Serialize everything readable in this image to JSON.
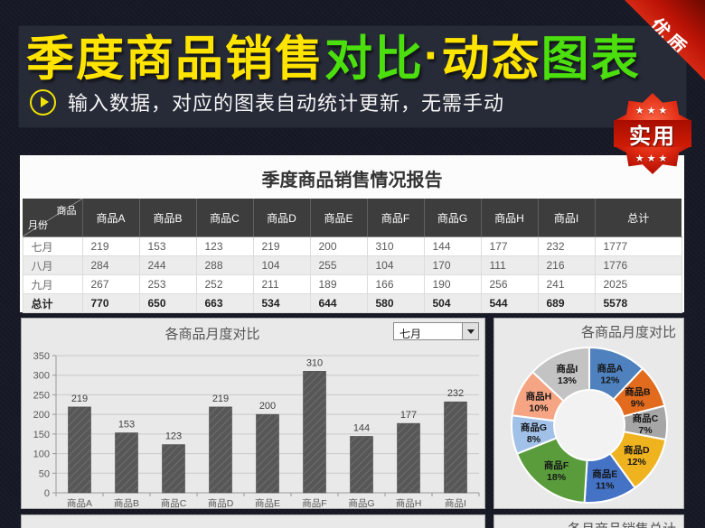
{
  "ribbon": {
    "label": "优质"
  },
  "badge": {
    "label": "实用",
    "stars_top": "★★★",
    "stars_bottom": "★★★"
  },
  "banner": {
    "title_segments": [
      {
        "text": "季度商品销售",
        "color": "#ffe400"
      },
      {
        "text": "对比",
        "color": "#4cdf0e"
      },
      {
        "text": "·",
        "color": "#ffe400"
      },
      {
        "text": "动态",
        "color": "#ffe400"
      },
      {
        "text": "图表",
        "color": "#4cdf0e"
      }
    ],
    "subtitle": "输入数据，对应的图表自动统计更新，无需手动"
  },
  "report": {
    "title": "季度商品销售情况报告",
    "corner": {
      "top": "商品",
      "bottom": "月份"
    },
    "columns": [
      "商品A",
      "商品B",
      "商品C",
      "商品D",
      "商品E",
      "商品F",
      "商品G",
      "商品H",
      "商品I",
      "总计"
    ],
    "rows": [
      {
        "label": "七月",
        "values": [
          219,
          153,
          123,
          219,
          200,
          310,
          144,
          177,
          232,
          1777
        ],
        "bold": false
      },
      {
        "label": "八月",
        "values": [
          284,
          244,
          288,
          104,
          255,
          104,
          170,
          111,
          216,
          1776
        ],
        "bold": false
      },
      {
        "label": "九月",
        "values": [
          267,
          253,
          252,
          211,
          189,
          166,
          190,
          256,
          241,
          2025
        ],
        "bold": false
      },
      {
        "label": "总计",
        "values": [
          770,
          650,
          663,
          534,
          644,
          580,
          504,
          544,
          689,
          5578
        ],
        "bold": true
      }
    ]
  },
  "chart_data": [
    {
      "type": "bar",
      "title": "各商品月度对比",
      "selector": "七月",
      "categories": [
        "商品A",
        "商品B",
        "商品C",
        "商品D",
        "商品E",
        "商品F",
        "商品G",
        "商品H",
        "商品I"
      ],
      "values": [
        219,
        153,
        123,
        219,
        200,
        310,
        144,
        177,
        232
      ],
      "xlabel": "",
      "ylabel": "",
      "ylim": [
        0,
        350
      ],
      "ytick_step": 50,
      "bar_color": "#575757",
      "grid": true,
      "legend": "none"
    },
    {
      "type": "donut",
      "title": "各商品月度对比",
      "labels": [
        "商品A",
        "商品B",
        "商品C",
        "商品D",
        "商品E",
        "商品F",
        "商品G",
        "商品H",
        "商品I"
      ],
      "values_percent": [
        12,
        9,
        7,
        12,
        11,
        18,
        8,
        10,
        13
      ],
      "colors": [
        "#4e81bd",
        "#e26b1e",
        "#a6a6a6",
        "#efb320",
        "#4472c4",
        "#5a9c3c",
        "#a2c1e8",
        "#f5a583",
        "#c3c3c3"
      ],
      "label_position": "inside"
    }
  ],
  "bottom": {
    "right_title": "各月商品销售总计"
  }
}
